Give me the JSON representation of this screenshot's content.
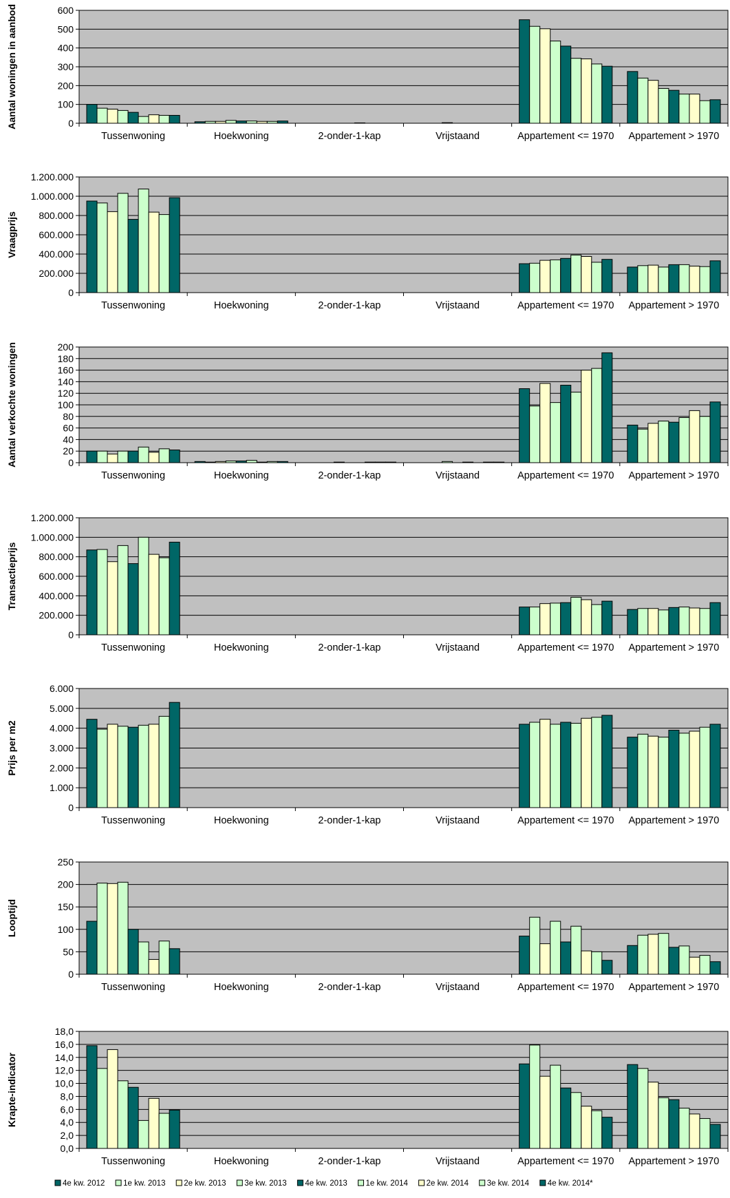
{
  "legend": [
    "4e kw. 2012",
    "1e kw. 2013",
    "2e kw. 2013",
    "3e kw. 2013",
    "4e kw. 2013",
    "1e kw. 2014",
    "2e kw. 2014",
    "3e kw. 2014",
    "4e kw. 2014*"
  ],
  "series_colors": [
    "#006666",
    "#CCFFCC",
    "#FFFFCC",
    "#CCFFCC",
    "#006666",
    "#CCFFCC",
    "#FFFFCC",
    "#CCFFCC",
    "#006666"
  ],
  "plot_bg": "#C0C0C0",
  "categories": [
    "Tussenwoning",
    "Hoekwoning",
    "2-onder-1-kap",
    "Vrijstaand",
    "Appartement <= 1970",
    "Appartement > 1970"
  ],
  "chart_data": [
    {
      "type": "bar",
      "ylabel": "Aantal woningen in aanbod",
      "ylim": [
        0,
        600
      ],
      "yticks": [
        "0",
        "100",
        "200",
        "300",
        "400",
        "500",
        "600"
      ],
      "grid": true,
      "values": [
        [
          100,
          80,
          75,
          68,
          58,
          36,
          45,
          42,
          42
        ],
        [
          8,
          10,
          10,
          15,
          12,
          12,
          10,
          10,
          12
        ],
        [
          0,
          0,
          0,
          0,
          0,
          2,
          0,
          0,
          0
        ],
        [
          0,
          0,
          0,
          3,
          0,
          0,
          0,
          0,
          0
        ],
        [
          550,
          515,
          502,
          437,
          410,
          345,
          342,
          315,
          303
        ],
        [
          275,
          240,
          228,
          185,
          175,
          155,
          155,
          120,
          125
        ]
      ]
    },
    {
      "type": "bar",
      "ylabel": "Vraagprijs",
      "ylim": [
        0,
        1200000
      ],
      "yticks": [
        "0",
        "200.000",
        "400.000",
        "600.000",
        "800.000",
        "1.000.000",
        "1.200.000"
      ],
      "grid": true,
      "values": [
        [
          950000,
          930000,
          840000,
          1030000,
          760000,
          1075000,
          835000,
          810000,
          985000
        ],
        [
          0,
          0,
          0,
          0,
          0,
          0,
          0,
          0,
          0
        ],
        [
          0,
          0,
          0,
          0,
          0,
          0,
          0,
          0,
          0
        ],
        [
          0,
          0,
          0,
          0,
          0,
          0,
          0,
          0,
          0
        ],
        [
          300000,
          305000,
          335000,
          340000,
          355000,
          390000,
          375000,
          315000,
          345000
        ],
        [
          265000,
          280000,
          285000,
          265000,
          290000,
          290000,
          275000,
          270000,
          330000
        ]
      ]
    },
    {
      "type": "bar",
      "ylabel": "Aantal verkochte woningen",
      "ylim": [
        0,
        200
      ],
      "yticks": [
        "0",
        "20",
        "40",
        "60",
        "80",
        "100",
        "120",
        "140",
        "160",
        "180",
        "200"
      ],
      "grid": true,
      "values": [
        [
          20,
          20,
          15,
          20,
          20,
          27,
          18,
          24,
          22
        ],
        [
          2,
          1,
          2,
          3,
          3,
          4,
          1,
          2,
          2
        ],
        [
          0,
          0,
          0,
          1,
          0,
          0,
          1,
          1,
          1
        ],
        [
          0,
          0,
          0,
          2,
          0,
          1,
          0,
          1,
          1
        ],
        [
          128,
          98,
          137,
          104,
          134,
          122,
          160,
          163,
          190
        ],
        [
          65,
          58,
          68,
          72,
          70,
          78,
          90,
          80,
          105
        ]
      ]
    },
    {
      "type": "bar",
      "ylabel": "Transactieprijs",
      "ylim": [
        0,
        1200000
      ],
      "yticks": [
        "0",
        "200.000",
        "400.000",
        "600.000",
        "800.000",
        "1.000.000",
        "1.200.000"
      ],
      "grid": true,
      "values": [
        [
          870000,
          875000,
          750000,
          915000,
          730000,
          1000000,
          825000,
          790000,
          950000
        ],
        [
          0,
          0,
          0,
          0,
          0,
          0,
          0,
          0,
          0
        ],
        [
          0,
          0,
          0,
          0,
          0,
          0,
          0,
          0,
          0
        ],
        [
          0,
          0,
          0,
          0,
          0,
          0,
          0,
          0,
          0
        ],
        [
          285000,
          285000,
          320000,
          325000,
          330000,
          385000,
          360000,
          310000,
          345000
        ],
        [
          260000,
          270000,
          270000,
          255000,
          280000,
          285000,
          275000,
          270000,
          330000
        ]
      ]
    },
    {
      "type": "bar",
      "ylabel": "Prijs per m2",
      "ylim": [
        0,
        6000
      ],
      "yticks": [
        "0",
        "1.000",
        "2.000",
        "3.000",
        "4.000",
        "5.000",
        "6.000"
      ],
      "grid": true,
      "values": [
        [
          4450,
          3950,
          4200,
          4100,
          4050,
          4150,
          4200,
          4600,
          5300
        ],
        [
          0,
          0,
          0,
          0,
          0,
          0,
          0,
          0,
          0
        ],
        [
          0,
          0,
          0,
          0,
          0,
          0,
          0,
          0,
          0
        ],
        [
          0,
          0,
          0,
          0,
          0,
          0,
          0,
          0,
          0
        ],
        [
          4200,
          4300,
          4450,
          4200,
          4300,
          4250,
          4500,
          4550,
          4650
        ],
        [
          3550,
          3700,
          3600,
          3550,
          3900,
          3750,
          3850,
          4050,
          4200
        ]
      ]
    },
    {
      "type": "bar",
      "ylabel": "Looptijd",
      "ylim": [
        0,
        250
      ],
      "yticks": [
        "0",
        "50",
        "100",
        "150",
        "200",
        "250"
      ],
      "grid": true,
      "values": [
        [
          118,
          203,
          202,
          205,
          100,
          72,
          33,
          74,
          57
        ],
        [
          0,
          0,
          0,
          0,
          0,
          0,
          0,
          0,
          0
        ],
        [
          0,
          0,
          0,
          0,
          0,
          0,
          0,
          0,
          0
        ],
        [
          0,
          0,
          0,
          0,
          0,
          0,
          0,
          0,
          0
        ],
        [
          85,
          127,
          68,
          118,
          72,
          107,
          52,
          50,
          31
        ],
        [
          64,
          87,
          89,
          91,
          60,
          63,
          38,
          42,
          28
        ]
      ]
    },
    {
      "type": "bar",
      "ylabel": "Krapte-indicator",
      "ylim": [
        0,
        18
      ],
      "yticks": [
        "0,0",
        "2,0",
        "4,0",
        "6,0",
        "8,0",
        "10,0",
        "12,0",
        "14,0",
        "16,0",
        "18,0"
      ],
      "grid": true,
      "values": [
        [
          15.8,
          12.3,
          15.2,
          10.4,
          9.4,
          4.3,
          7.7,
          5.4,
          5.9
        ],
        [
          0,
          0,
          0,
          0,
          0,
          0,
          0,
          0,
          0
        ],
        [
          0,
          0,
          0,
          0,
          0,
          0,
          0,
          0,
          0
        ],
        [
          0,
          0,
          0,
          0,
          0,
          0,
          0,
          0,
          0
        ],
        [
          13.0,
          15.9,
          11.1,
          12.8,
          9.3,
          8.6,
          6.5,
          5.8,
          4.8
        ],
        [
          12.9,
          12.3,
          10.2,
          7.8,
          7.5,
          6.2,
          5.3,
          4.6,
          3.7
        ]
      ]
    }
  ]
}
